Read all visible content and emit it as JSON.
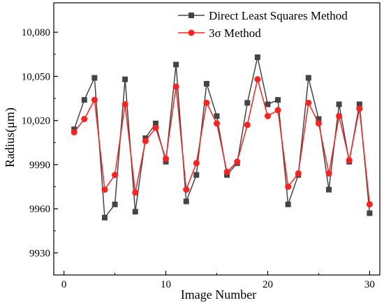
{
  "chart_data": {
    "type": "line",
    "title": "",
    "xlabel": "Image Number",
    "ylabel": "Radius(μm)",
    "xlim": [
      -1,
      31
    ],
    "ylim": [
      9915,
      10100
    ],
    "xticks": [
      0,
      10,
      20,
      30
    ],
    "xtick_labels": [
      "0",
      "10",
      "20",
      "30"
    ],
    "yticks": [
      9930,
      9960,
      9990,
      10020,
      10050,
      10080
    ],
    "ytick_labels": [
      "9930",
      "9960",
      "9990",
      "10,020",
      "10,050",
      "10,080"
    ],
    "grid": false,
    "legend_position": "top-right",
    "x": [
      1,
      2,
      3,
      4,
      5,
      6,
      7,
      8,
      9,
      10,
      11,
      12,
      13,
      14,
      15,
      16,
      17,
      18,
      19,
      20,
      21,
      22,
      23,
      24,
      25,
      26,
      27,
      28,
      29,
      30
    ],
    "series": [
      {
        "name": "Direct Least Squares Method",
        "color": "#444444",
        "marker": "square",
        "values": [
          10014,
          10034,
          10049,
          9954,
          9963,
          10048,
          9958,
          10008,
          10018,
          9992,
          10058,
          9965,
          9983,
          10045,
          10023,
          9983,
          9991,
          10032,
          10063,
          10031,
          10034,
          9963,
          9983,
          10049,
          10021,
          9973,
          10031,
          9992,
          10031,
          9957
        ]
      },
      {
        "name": "3σ  Method",
        "color": "#ff2020",
        "marker": "circle",
        "values": [
          10012,
          10021,
          10034,
          9973,
          9983,
          10031,
          9971,
          10006,
          10015,
          9994,
          10043,
          9973,
          9991,
          10032,
          10018,
          9985,
          9992,
          10017,
          10048,
          10023,
          10027,
          9975,
          9984,
          10032,
          10018,
          9984,
          10023,
          9993,
          10028,
          9963
        ]
      }
    ]
  }
}
